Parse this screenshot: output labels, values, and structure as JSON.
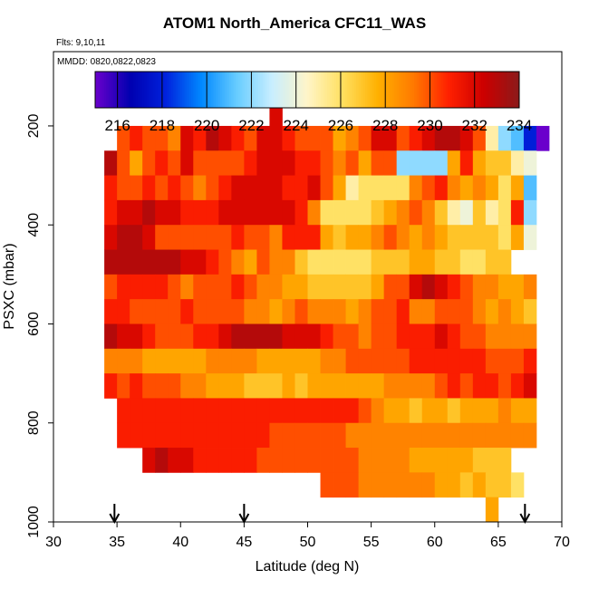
{
  "chart_data": {
    "type": "heatmap",
    "title": "ATOM1 North_America CFC11_WAS",
    "flights_label": "Flts: 9,10,11",
    "mmdd_label": "MMDD: 0820,0822,0823",
    "xlabel": "Latitude (deg N)",
    "ylabel": "PSXC (mbar)",
    "xlim": [
      30,
      70
    ],
    "ylim": [
      1000,
      50
    ],
    "x_ticks": [
      "30",
      "35",
      "40",
      "45",
      "50",
      "55",
      "60",
      "65",
      "70"
    ],
    "y_ticks": [
      "200",
      "400",
      "600",
      "800",
      "1000"
    ],
    "colorbar": {
      "min": 215,
      "max": 234,
      "ticks": [
        "216",
        "218",
        "220",
        "222",
        "224",
        "226",
        "228",
        "230",
        "232",
        "234"
      ],
      "colors": [
        "#6a00cc",
        "#0000b0",
        "#0022dd",
        "#0088ff",
        "#66ccff",
        "#c8eeff",
        "#fff5c8",
        "#ffe060",
        "#ffb000",
        "#ff7a00",
        "#ff2000",
        "#cc0000",
        "#8b1a1a"
      ]
    },
    "bin_width_deg": 1,
    "bin_height_mbar": 50,
    "rows": [
      {
        "p": 175,
        "x0": 47,
        "values": [
          232
        ]
      },
      {
        "p": 225,
        "x0": 35,
        "values": [
          230,
          231,
          230,
          230,
          229,
          232,
          231,
          233,
          232,
          231,
          230,
          232,
          232,
          231,
          230,
          230,
          230,
          228,
          229,
          230,
          232,
          232,
          230,
          231,
          232,
          233,
          233,
          232,
          230,
          225,
          222,
          221,
          218,
          215
        ]
      },
      {
        "p": 275,
        "x0": 34,
        "values": [
          233,
          230,
          228,
          230,
          231,
          230,
          232,
          230,
          230,
          230,
          230,
          231,
          232,
          232,
          232,
          231,
          231,
          230,
          229,
          230,
          228,
          230,
          230,
          222,
          222,
          222,
          222,
          228,
          231,
          228,
          227,
          227,
          225,
          224
        ]
      },
      {
        "p": 325,
        "x0": 34,
        "values": [
          231,
          230,
          230,
          231,
          230,
          231,
          230,
          229,
          230,
          231,
          232,
          232,
          232,
          232,
          231,
          231,
          232,
          230,
          228,
          225,
          226,
          226,
          226,
          226,
          229,
          230,
          231,
          229,
          228,
          229,
          228,
          226,
          228,
          221
        ]
      },
      {
        "p": 375,
        "x0": 34,
        "values": [
          231,
          232,
          232,
          233,
          232,
          232,
          231,
          231,
          231,
          232,
          232,
          232,
          232,
          232,
          232,
          231,
          229,
          226,
          226,
          226,
          226,
          227,
          228,
          229,
          230,
          229,
          227,
          225,
          224,
          227,
          225,
          226,
          231,
          222
        ]
      },
      {
        "p": 425,
        "x0": 34,
        "values": [
          232,
          233,
          233,
          232,
          230,
          230,
          230,
          230,
          230,
          230,
          231,
          230,
          230,
          229,
          231,
          231,
          231,
          228,
          227,
          228,
          228,
          229,
          230,
          229,
          228,
          229,
          228,
          227,
          227,
          227,
          227,
          226,
          228,
          224
        ]
      },
      {
        "p": 475,
        "x0": 34,
        "values": [
          233,
          233,
          233,
          233,
          233,
          233,
          232,
          232,
          231,
          230,
          229,
          228,
          230,
          229,
          229,
          227,
          226,
          226,
          226,
          226,
          226,
          227,
          227,
          227,
          228,
          228,
          227,
          227,
          226,
          226,
          227,
          227
        ]
      },
      {
        "p": 525,
        "x0": 34,
        "values": [
          230,
          231,
          231,
          231,
          231,
          230,
          229,
          230,
          230,
          230,
          231,
          230,
          229,
          229,
          228,
          228,
          227,
          227,
          227,
          227,
          227,
          228,
          230,
          230,
          232,
          233,
          232,
          231,
          230,
          229,
          229,
          228,
          228,
          229
        ]
      },
      {
        "p": 575,
        "x0": 34,
        "values": [
          231,
          231,
          230,
          230,
          230,
          230,
          231,
          230,
          230,
          230,
          230,
          229,
          229,
          228,
          229,
          230,
          229,
          229,
          229,
          228,
          229,
          230,
          230,
          231,
          229,
          229,
          230,
          230,
          230,
          229,
          228,
          229,
          228,
          227
        ]
      },
      {
        "p": 625,
        "x0": 34,
        "values": [
          233,
          232,
          232,
          231,
          230,
          230,
          230,
          231,
          231,
          232,
          233,
          233,
          233,
          233,
          232,
          232,
          232,
          231,
          230,
          230,
          229,
          230,
          230,
          231,
          231,
          231,
          232,
          231,
          230,
          230,
          229,
          229,
          229,
          229
        ]
      },
      {
        "p": 675,
        "x0": 34,
        "values": [
          229,
          229,
          229,
          228,
          228,
          228,
          228,
          228,
          229,
          229,
          229,
          229,
          228,
          228,
          228,
          228,
          228,
          229,
          229,
          230,
          230,
          230,
          230,
          230,
          231,
          231,
          231,
          231,
          231,
          231,
          230,
          230,
          230,
          231
        ]
      },
      {
        "p": 725,
        "x0": 34,
        "values": [
          231,
          230,
          231,
          230,
          230,
          230,
          229,
          229,
          228,
          228,
          228,
          227,
          227,
          227,
          228,
          227,
          228,
          228,
          228,
          228,
          228,
          228,
          229,
          229,
          229,
          229,
          230,
          231,
          230,
          231,
          231,
          230,
          231,
          232
        ]
      },
      {
        "p": 775,
        "x0": 35,
        "values": [
          231,
          231,
          231,
          231,
          231,
          231,
          231,
          231,
          231,
          231,
          231,
          231,
          231,
          231,
          231,
          231,
          231,
          231,
          231,
          230,
          229,
          228,
          228,
          227,
          228,
          228,
          227,
          228,
          228,
          228,
          229,
          228,
          228
        ]
      },
      {
        "p": 825,
        "x0": 35,
        "values": [
          231,
          231,
          231,
          231,
          231,
          231,
          231,
          231,
          231,
          231,
          231,
          231,
          230,
          230,
          230,
          230,
          230,
          230,
          229,
          229,
          229,
          229,
          229,
          229,
          229,
          229,
          229,
          229,
          229,
          229,
          229,
          229,
          229
        ]
      },
      {
        "p": 875,
        "x0": 37,
        "values": [
          232,
          233,
          232,
          232,
          231,
          231,
          231,
          231,
          231,
          230,
          230,
          230,
          230,
          230,
          230,
          230,
          230,
          229,
          229,
          229,
          229,
          228,
          228,
          228,
          228,
          228,
          227,
          227,
          227
        ]
      },
      {
        "p": 925,
        "x0": 51,
        "values": [
          230,
          230,
          230,
          229,
          229,
          229,
          229,
          229,
          229,
          228,
          228,
          227,
          228,
          227,
          227,
          226
        ]
      },
      {
        "p": 975,
        "x0": 64,
        "values": [
          228
        ]
      }
    ],
    "flight_markers_latitude": [
      34.8,
      45,
      67.1
    ]
  }
}
